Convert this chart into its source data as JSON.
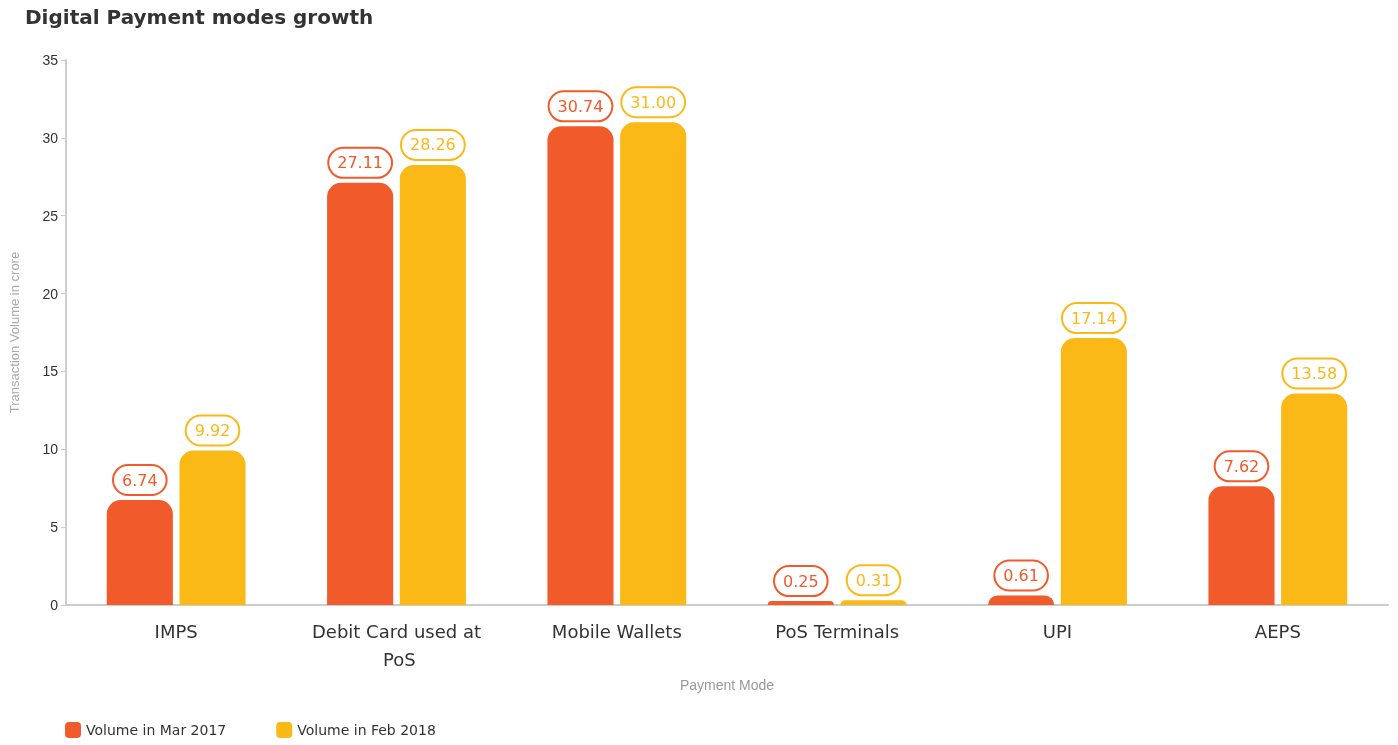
{
  "chart_data": {
    "type": "bar",
    "title": "Digital Payment modes growth",
    "xlabel": "Payment Mode",
    "ylabel": "Transaction Volume in crore",
    "categories": [
      "IMPS",
      "Debit Card used at PoS",
      "Mobile Wallets",
      "PoS Terminals",
      "UPI",
      "AEPS"
    ],
    "series": [
      {
        "name": "Volume in Mar 2017",
        "color": "#f15a2b",
        "values": [
          6.74,
          27.11,
          30.74,
          0.25,
          0.61,
          7.62
        ],
        "value_labels": [
          "6.74",
          "27.11",
          "30.74",
          "0.25",
          "0.61",
          "7.62"
        ]
      },
      {
        "name": "Volume in Feb 2018",
        "color": "#fbb917",
        "values": [
          9.92,
          28.26,
          31.0,
          0.31,
          17.14,
          13.58
        ],
        "value_labels": [
          "9.92",
          "28.26",
          "31.00",
          "0.31",
          "17.14",
          "13.58"
        ]
      }
    ],
    "ylim": [
      0,
      35
    ],
    "yticks": [
      0,
      5,
      10,
      15,
      20,
      25,
      30,
      35
    ],
    "grid": false,
    "legend": "bottom left"
  }
}
